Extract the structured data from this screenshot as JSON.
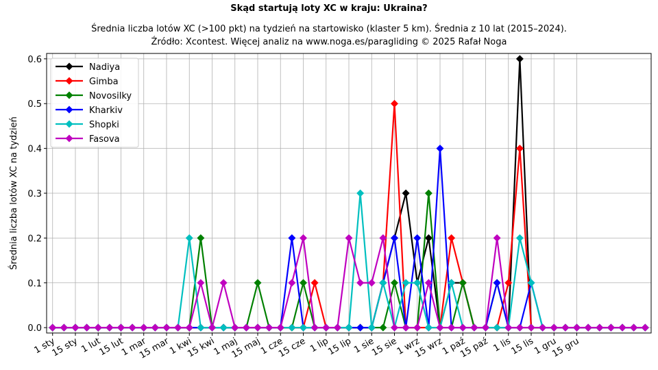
{
  "chart_data": {
    "type": "line",
    "title": "Skąd startują loty XC w kraju: Ukraina?",
    "subtitle_lines": [
      "Średnia liczba lotów XC (>100 pkt) na tydzień na startowisko (klaster 5 km). Średnia z 10 lat (2015–2024).",
      "Źródło: Xcontest. Więcej analiz na www.noga.es/paragliding © 2025 Rafał Noga"
    ],
    "xlabel": "",
    "ylabel": "Średnia liczba lotów XC na tydzień",
    "x_tick_labels": [
      "1 sty",
      "15 sty",
      "1 lut",
      "15 lut",
      "1 mar",
      "15 mar",
      "1 kwi",
      "15 kwi",
      "1 maj",
      "15 maj",
      "1 cze",
      "15 cze",
      "1 lip",
      "15 lip",
      "1 sie",
      "15 sie",
      "1 wrz",
      "15 wrz",
      "1 paź",
      "15 paź",
      "1 lis",
      "15 lis",
      "1 gru",
      "15 gru"
    ],
    "y_ticks": [
      "0.0",
      "0.1",
      "0.2",
      "0.3",
      "0.4",
      "0.5",
      "0.6"
    ],
    "ylim": [
      -0.012,
      0.612
    ],
    "grid": true,
    "legend_position": "top-left",
    "series": [
      {
        "name": "Nadiya",
        "color": "#000000",
        "values": [
          0,
          0,
          0,
          0,
          0,
          0,
          0,
          0,
          0,
          0,
          0,
          0,
          0,
          0,
          0,
          0,
          0,
          0,
          0,
          0,
          0,
          0,
          0,
          0,
          0,
          0,
          0,
          0,
          0,
          0.1,
          0.2,
          0.3,
          0.1,
          0.2,
          0,
          0.1,
          0.1,
          0,
          0,
          0,
          0,
          0.6,
          0,
          0,
          0,
          0,
          0,
          0,
          0,
          0,
          0,
          0,
          0
        ]
      },
      {
        "name": "Gimba",
        "color": "#ff0000",
        "values": [
          0,
          0,
          0,
          0,
          0,
          0,
          0,
          0,
          0,
          0,
          0,
          0,
          0,
          0,
          0,
          0,
          0,
          0,
          0,
          0,
          0,
          0,
          0,
          0.1,
          0,
          0,
          0,
          0,
          0,
          0.1,
          0.5,
          0,
          0,
          0,
          0,
          0.2,
          0.1,
          0,
          0,
          0,
          0.1,
          0.4,
          0,
          0,
          0,
          0,
          0,
          0,
          0,
          0,
          0,
          0,
          0
        ]
      },
      {
        "name": "Novosilky",
        "color": "#008000",
        "values": [
          0,
          0,
          0,
          0,
          0,
          0,
          0,
          0,
          0,
          0,
          0,
          0,
          0,
          0.2,
          0,
          0,
          0,
          0,
          0.1,
          0,
          0,
          0,
          0.1,
          0,
          0,
          0,
          0,
          0,
          0,
          0,
          0.1,
          0,
          0,
          0.3,
          0,
          0,
          0.1,
          0,
          0,
          0.1,
          0,
          0,
          0,
          0,
          0,
          0,
          0,
          0,
          0,
          0,
          0,
          0,
          0
        ]
      },
      {
        "name": "Kharkiv",
        "color": "#0000ff",
        "values": [
          0,
          0,
          0,
          0,
          0,
          0,
          0,
          0,
          0,
          0,
          0,
          0,
          0,
          0,
          0,
          0,
          0,
          0,
          0,
          0,
          0,
          0.2,
          0,
          0,
          0,
          0,
          0,
          0,
          0,
          0.1,
          0.2,
          0,
          0.2,
          0,
          0.4,
          0,
          0,
          0,
          0,
          0.1,
          0,
          0,
          0.1,
          0,
          0,
          0,
          0,
          0,
          0,
          0,
          0,
          0,
          0
        ]
      },
      {
        "name": "Shopki",
        "color": "#00bfbf",
        "values": [
          0,
          0,
          0,
          0,
          0,
          0,
          0,
          0,
          0,
          0,
          0,
          0,
          0.2,
          0,
          0,
          0,
          0,
          0,
          0,
          0,
          0,
          0,
          0,
          0,
          0,
          0,
          0,
          0.3,
          0,
          0.1,
          0,
          0.1,
          0.1,
          0,
          0,
          0.1,
          0,
          0,
          0,
          0,
          0,
          0.2,
          0.1,
          0,
          0,
          0,
          0,
          0,
          0,
          0,
          0,
          0,
          0
        ]
      },
      {
        "name": "Fasova",
        "color": "#bf00bf",
        "values": [
          0,
          0,
          0,
          0,
          0,
          0,
          0,
          0,
          0,
          0,
          0,
          0,
          0,
          0.1,
          0,
          0.1,
          0,
          0,
          0,
          0,
          0,
          0.1,
          0.2,
          0,
          0,
          0,
          0.2,
          0.1,
          0.1,
          0.2,
          0,
          0,
          0,
          0.1,
          0,
          0,
          0,
          0,
          0,
          0.2,
          0,
          0,
          0,
          0,
          0,
          0,
          0,
          0,
          0,
          0,
          0,
          0,
          0
        ]
      }
    ]
  }
}
